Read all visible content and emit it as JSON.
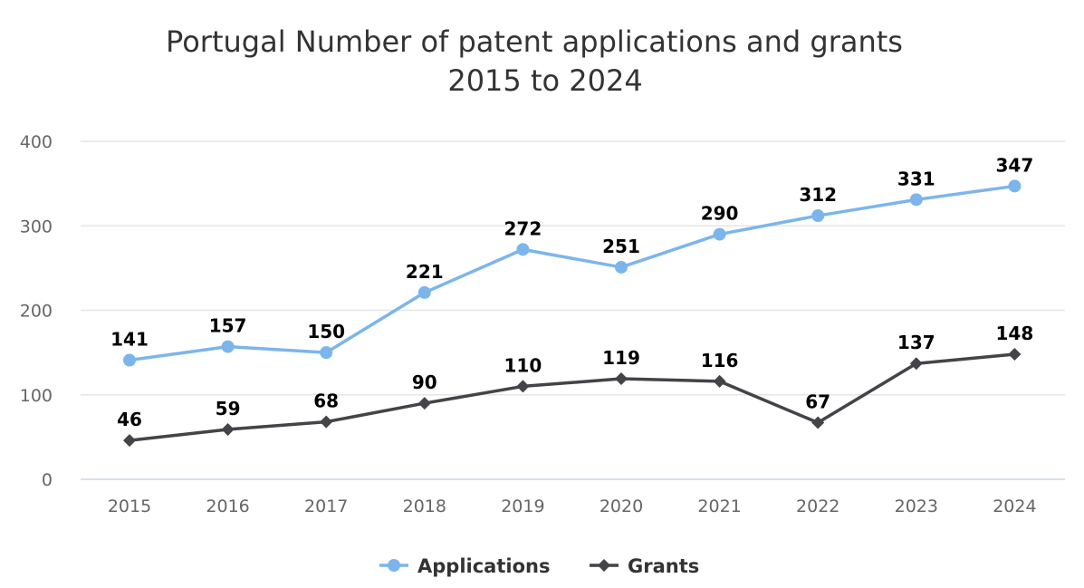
{
  "chart_data": {
    "type": "line",
    "title_line1": "Portugal Number of patent applications and grants",
    "title_line2": "2015 to 2024",
    "categories": [
      "2015",
      "2016",
      "2017",
      "2018",
      "2019",
      "2020",
      "2021",
      "2022",
      "2023",
      "2024"
    ],
    "ylim": [
      0,
      400
    ],
    "yticks": [
      0,
      100,
      200,
      300,
      400
    ],
    "grid": true,
    "legend_position": "bottom-center",
    "series": [
      {
        "name": "Applications",
        "color": "#7cb5ec",
        "marker": "circle",
        "values": [
          141,
          157,
          150,
          221,
          272,
          251,
          290,
          312,
          331,
          347
        ]
      },
      {
        "name": "Grants",
        "color": "#434348",
        "marker": "diamond",
        "values": [
          46,
          59,
          68,
          90,
          110,
          119,
          116,
          67,
          137,
          148
        ]
      }
    ]
  }
}
